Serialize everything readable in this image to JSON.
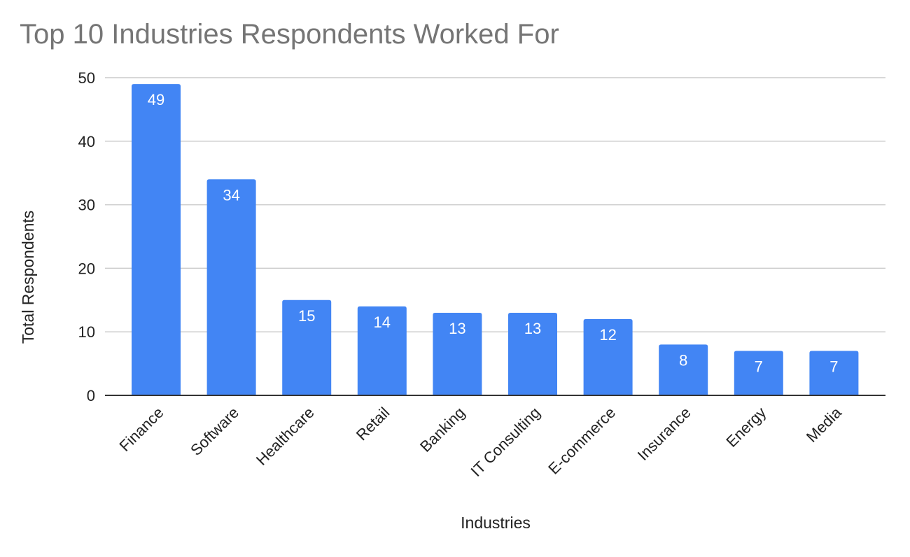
{
  "chart_data": {
    "type": "bar",
    "title": "Top 10 Industries Respondents Worked For",
    "xlabel": "Industries",
    "ylabel": "Total Respondents",
    "categories": [
      "Finance",
      "Software",
      "Healthcare",
      "Retail",
      "Banking",
      "IT Consulting",
      "E-commerce",
      "Insurance",
      "Energy",
      "Media"
    ],
    "values": [
      49,
      34,
      15,
      14,
      13,
      13,
      12,
      8,
      7,
      7
    ],
    "ylim": [
      0,
      50
    ],
    "yticks": [
      0,
      10,
      20,
      30,
      40,
      50
    ],
    "grid": true,
    "legend": "none",
    "bar_color": "#4285f4"
  }
}
